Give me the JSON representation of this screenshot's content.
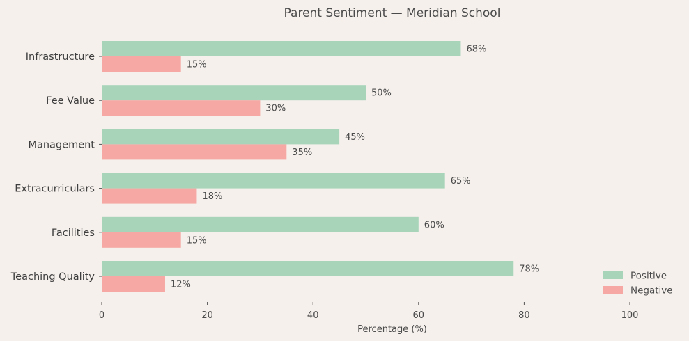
{
  "chart_data": {
    "type": "bar",
    "orientation": "horizontal",
    "title": "Parent Sentiment — Meridian School",
    "xlabel": "Percentage (%)",
    "ylabel": "",
    "xlim": [
      0,
      110
    ],
    "xticks": [
      "0",
      "20",
      "40",
      "60",
      "80",
      "100"
    ],
    "categories": [
      "Infrastructure",
      "Fee Value",
      "Management",
      "Extracurriculars",
      "Facilities",
      "Teaching Quality"
    ],
    "series": [
      {
        "name": "Positive",
        "color": "#a8d5b9",
        "values": [
          68,
          50,
          45,
          65,
          60,
          78
        ],
        "labels": [
          "68%",
          "50%",
          "45%",
          "65%",
          "60%",
          "78%"
        ]
      },
      {
        "name": "Negative",
        "color": "#f5a8a4",
        "values": [
          15,
          30,
          35,
          18,
          15,
          12
        ],
        "labels": [
          "15%",
          "30%",
          "35%",
          "18%",
          "15%",
          "12%"
        ]
      }
    ],
    "grid": false,
    "legend_position": "bottom-right"
  }
}
